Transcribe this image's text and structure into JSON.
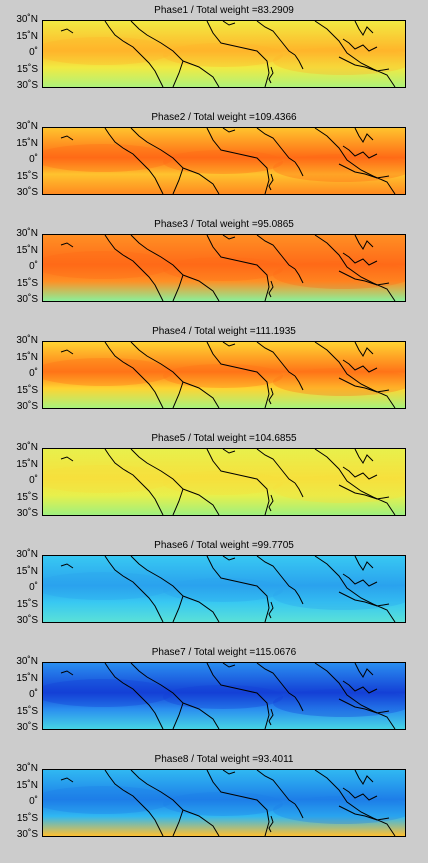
{
  "chart_data": {
    "type": "heatmap",
    "ytick_labels": [
      "30˚N",
      "15˚N",
      "0˚",
      "15˚S",
      "30˚S"
    ],
    "panels": [
      {
        "title": "Phase1 / Total weight =83.2909",
        "overall_color": "#f2ea42",
        "band_color": "#ffb52a",
        "lower_color": "#aef27a"
      },
      {
        "title": "Phase2 / Total weight =109.4366",
        "overall_color": "#ffc32e",
        "band_color": "#ff6a16",
        "lower_color": "#ff8a20"
      },
      {
        "title": "Phase3 / Total weight =95.0865",
        "overall_color": "#ff8f24",
        "band_color": "#ff6a18",
        "lower_color": "#8af09a"
      },
      {
        "title": "Phase4 / Total weight =111.1935",
        "overall_color": "#ffd432",
        "band_color": "#ff7418",
        "lower_color": "#a8f27c"
      },
      {
        "title": "Phase5 / Total weight =104.6855",
        "overall_color": "#e8f04c",
        "band_color": "#f7e03c",
        "lower_color": "#9ff07e"
      },
      {
        "title": "Phase6 / Total weight =99.7705",
        "overall_color": "#38c8f2",
        "band_color": "#2aa2ee",
        "lower_color": "#5ae0d8"
      },
      {
        "title": "Phase7 / Total weight =115.0676",
        "overall_color": "#2a8ef0",
        "band_color": "#1440d6",
        "lower_color": "#46d4e4"
      },
      {
        "title": "Phase8 / Total weight =93.4011",
        "overall_color": "#30b8f2",
        "band_color": "#1e7ee8",
        "lower_color": "#ffc030"
      }
    ]
  }
}
